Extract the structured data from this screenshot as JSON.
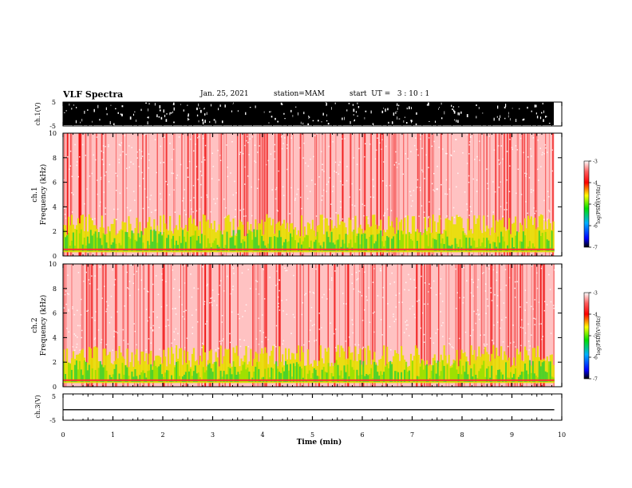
{
  "header": {
    "title": "VLF Spectra",
    "date": "Jan. 25, 2021",
    "station": "station=MAM",
    "start": "start  UT =   3 : 10 : 1"
  },
  "chart_data": [
    {
      "type": "line",
      "panel": "ch1-waveform",
      "ylabel": "ch.1(V)",
      "ylim": [
        -5,
        5
      ],
      "yticks": [
        5,
        -5
      ],
      "xlim": [
        0,
        10
      ],
      "appearance": "dense black waveform saturating nearly full range",
      "color": "#000000"
    },
    {
      "type": "heatmap",
      "panel": "ch1-spectrogram",
      "ylabel": "ch.1\nFrequency (kHz)",
      "ylim": [
        0,
        10
      ],
      "yticks": [
        0,
        2,
        4,
        6,
        8,
        10
      ],
      "xlim": [
        0,
        10
      ],
      "colorbar": {
        "label": "log(PSD)(V²/Hz)",
        "range": [
          -7,
          -3
        ],
        "ticks": [
          -3,
          -4,
          -5,
          -6,
          -7
        ]
      },
      "bands": [
        {
          "f_low": 0,
          "f_high": 3,
          "level": -4.8,
          "note": "green/yellow band"
        },
        {
          "f_low": 3,
          "f_high": 10,
          "level": -3.6,
          "note": "red/white background"
        }
      ]
    },
    {
      "type": "heatmap",
      "panel": "ch2-spectrogram",
      "ylabel": "ch.2\nFrequency (kHz)",
      "ylim": [
        0,
        10
      ],
      "yticks": [
        0,
        2,
        4,
        6,
        8,
        10
      ],
      "xlim": [
        0,
        10
      ],
      "colorbar": {
        "label": "log(PSD)(V²/Hz)",
        "range": [
          -7,
          -3
        ],
        "ticks": [
          -3,
          -4,
          -5,
          -6,
          -7
        ]
      },
      "bands": [
        {
          "f_low": 0,
          "f_high": 3,
          "level": -4.8,
          "note": "green/yellow band"
        },
        {
          "f_low": 3,
          "f_high": 10,
          "level": -3.6,
          "note": "red/white background"
        }
      ]
    },
    {
      "type": "line",
      "panel": "ch3-waveform",
      "ylabel": "ch.3(V)",
      "ylim": [
        -5,
        5
      ],
      "yticks": [
        5,
        -5
      ],
      "xlim": [
        0,
        10
      ],
      "values_const": -1,
      "color": "#000000"
    }
  ],
  "xaxis": {
    "label": "Time (min)",
    "ticks": [
      0,
      1,
      2,
      3,
      4,
      5,
      6,
      7,
      8,
      9,
      10
    ],
    "data_end": 9.85
  }
}
